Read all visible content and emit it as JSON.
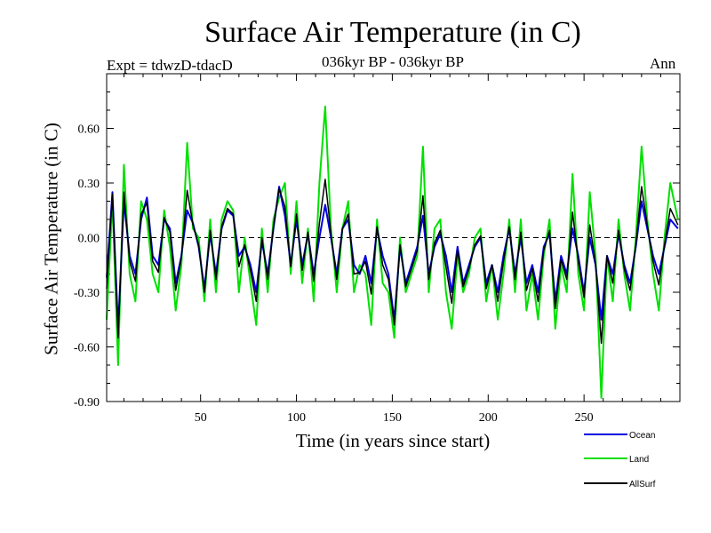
{
  "chart_data": {
    "type": "line",
    "title": "Surface Air Temperature (in C)",
    "subtitle_left": "Expt = tdwzD-tdacD",
    "subtitle_center": "036kyr BP - 036kyr BP",
    "subtitle_right": "Ann",
    "xlabel": "Time (in years since start)",
    "ylabel": "Surface Air Temperature (in C)",
    "xlim": [
      1,
      300
    ],
    "ylim": [
      -0.9,
      0.9
    ],
    "xticks": [
      50,
      100,
      150,
      200,
      250
    ],
    "xtick_labels": [
      "50",
      "100",
      "150",
      "200",
      "250"
    ],
    "yticks": [
      -0.9,
      -0.6,
      -0.3,
      0.0,
      0.3,
      0.6
    ],
    "ytick_labels": [
      "-0.90",
      "-0.60",
      "-0.30",
      "0.00",
      "0.30",
      "0.60"
    ],
    "zero_line": "dashed",
    "legend_placement": "bottom-right, outside plot",
    "series": [
      {
        "name": "Ocean",
        "color": "#0000e0",
        "x": [
          1,
          4,
          7,
          10,
          13,
          16,
          19,
          22,
          25,
          28,
          31,
          34,
          37,
          40,
          43,
          46,
          49,
          52,
          55,
          58,
          61,
          64,
          67,
          70,
          73,
          76,
          79,
          82,
          85,
          88,
          91,
          94,
          97,
          100,
          103,
          106,
          109,
          112,
          115,
          118,
          121,
          124,
          127,
          130,
          133,
          136,
          139,
          142,
          145,
          148,
          151,
          154,
          157,
          160,
          163,
          166,
          169,
          172,
          175,
          178,
          181,
          184,
          187,
          190,
          193,
          196,
          199,
          202,
          205,
          208,
          211,
          214,
          217,
          220,
          223,
          226,
          229,
          232,
          235,
          238,
          241,
          244,
          247,
          250,
          253,
          256,
          259,
          262,
          265,
          268,
          271,
          274,
          277,
          280,
          283,
          286,
          289,
          292,
          295,
          299
        ],
        "values": [
          -0.22,
          0.25,
          -0.5,
          0.2,
          -0.1,
          -0.2,
          0.1,
          0.22,
          -0.1,
          -0.15,
          0.1,
          0.05,
          -0.25,
          -0.1,
          0.15,
          0.08,
          -0.05,
          -0.28,
          0.02,
          -0.2,
          0.05,
          0.15,
          0.12,
          -0.1,
          -0.05,
          -0.15,
          -0.3,
          -0.02,
          -0.2,
          0.05,
          0.28,
          0.12,
          -0.15,
          0.1,
          -0.15,
          0.02,
          -0.2,
          0.0,
          0.18,
          0.0,
          -0.2,
          0.05,
          0.1,
          -0.15,
          -0.2,
          -0.1,
          -0.25,
          0.05,
          -0.1,
          -0.2,
          -0.45,
          -0.05,
          -0.25,
          -0.15,
          -0.05,
          0.12,
          -0.2,
          -0.05,
          0.02,
          -0.1,
          -0.3,
          -0.05,
          -0.25,
          -0.15,
          -0.05,
          0.0,
          -0.25,
          -0.15,
          -0.3,
          -0.1,
          0.05,
          -0.2,
          0.0,
          -0.25,
          -0.15,
          -0.3,
          -0.05,
          0.02,
          -0.35,
          -0.1,
          -0.2,
          0.05,
          -0.1,
          -0.3,
          0.0,
          -0.15,
          -0.45,
          -0.1,
          -0.2,
          0.02,
          -0.15,
          -0.25,
          -0.05,
          0.2,
          0.05,
          -0.1,
          -0.2,
          -0.05,
          0.1,
          0.05
        ]
      },
      {
        "name": "Land",
        "color": "#00e000",
        "x": [
          1,
          4,
          7,
          10,
          13,
          16,
          19,
          22,
          25,
          28,
          31,
          34,
          37,
          40,
          43,
          46,
          49,
          52,
          55,
          58,
          61,
          64,
          67,
          70,
          73,
          76,
          79,
          82,
          85,
          88,
          91,
          94,
          97,
          100,
          103,
          106,
          109,
          112,
          115,
          118,
          121,
          124,
          127,
          130,
          133,
          136,
          139,
          142,
          145,
          148,
          151,
          154,
          157,
          160,
          163,
          166,
          169,
          172,
          175,
          178,
          181,
          184,
          187,
          190,
          193,
          196,
          199,
          202,
          205,
          208,
          211,
          214,
          217,
          220,
          223,
          226,
          229,
          232,
          235,
          238,
          241,
          244,
          247,
          250,
          253,
          256,
          259,
          262,
          265,
          268,
          271,
          274,
          277,
          280,
          283,
          286,
          289,
          292,
          295,
          299
        ],
        "values": [
          -0.45,
          0.2,
          -0.7,
          0.4,
          -0.2,
          -0.35,
          0.2,
          0.1,
          -0.2,
          -0.3,
          0.15,
          -0.05,
          -0.4,
          -0.15,
          0.52,
          0.05,
          0.0,
          -0.35,
          0.1,
          -0.3,
          0.1,
          0.2,
          0.15,
          -0.3,
          0.0,
          -0.25,
          -0.48,
          0.05,
          -0.3,
          0.1,
          0.22,
          0.3,
          -0.2,
          0.2,
          -0.25,
          0.05,
          -0.35,
          0.3,
          0.72,
          0.05,
          -0.3,
          0.05,
          0.2,
          -0.3,
          -0.15,
          -0.2,
          -0.48,
          0.1,
          -0.25,
          -0.3,
          -0.55,
          0.0,
          -0.3,
          -0.2,
          -0.1,
          0.5,
          -0.3,
          0.05,
          0.1,
          -0.3,
          -0.5,
          -0.1,
          -0.3,
          -0.2,
          0.0,
          0.05,
          -0.35,
          -0.15,
          -0.45,
          -0.2,
          0.1,
          -0.3,
          0.1,
          -0.4,
          -0.2,
          -0.45,
          -0.1,
          0.1,
          -0.5,
          -0.15,
          -0.3,
          0.35,
          -0.2,
          -0.4,
          0.25,
          -0.1,
          -0.88,
          -0.1,
          -0.35,
          0.1,
          -0.2,
          -0.4,
          0.0,
          0.5,
          0.1,
          -0.2,
          -0.4,
          0.0,
          0.3,
          0.1
        ]
      },
      {
        "name": "AllSurf",
        "color": "#000000",
        "x": [
          1,
          4,
          7,
          10,
          13,
          16,
          19,
          22,
          25,
          28,
          31,
          34,
          37,
          40,
          43,
          46,
          49,
          52,
          55,
          58,
          61,
          64,
          67,
          70,
          73,
          76,
          79,
          82,
          85,
          88,
          91,
          94,
          97,
          100,
          103,
          106,
          109,
          112,
          115,
          118,
          121,
          124,
          127,
          130,
          133,
          136,
          139,
          142,
          145,
          148,
          151,
          154,
          157,
          160,
          163,
          166,
          169,
          172,
          175,
          178,
          181,
          184,
          187,
          190,
          193,
          196,
          199,
          202,
          205,
          208,
          211,
          214,
          217,
          220,
          223,
          226,
          229,
          232,
          235,
          238,
          241,
          244,
          247,
          250,
          253,
          256,
          259,
          262,
          265,
          268,
          271,
          274,
          277,
          280,
          283,
          286,
          289,
          292,
          295,
          299
        ],
        "values": [
          -0.28,
          0.24,
          -0.55,
          0.25,
          -0.13,
          -0.24,
          0.13,
          0.19,
          -0.13,
          -0.19,
          0.11,
          0.03,
          -0.29,
          -0.11,
          0.26,
          0.07,
          -0.04,
          -0.3,
          0.04,
          -0.23,
          0.06,
          0.16,
          0.13,
          -0.16,
          -0.04,
          -0.18,
          -0.35,
          0.0,
          -0.23,
          0.06,
          0.27,
          0.17,
          -0.16,
          0.13,
          -0.18,
          0.03,
          -0.24,
          0.08,
          0.32,
          0.02,
          -0.23,
          0.05,
          0.13,
          -0.2,
          -0.19,
          -0.13,
          -0.31,
          0.06,
          -0.15,
          -0.23,
          -0.48,
          -0.04,
          -0.27,
          -0.17,
          -0.07,
          0.23,
          -0.23,
          -0.03,
          0.04,
          -0.16,
          -0.36,
          -0.07,
          -0.27,
          -0.17,
          -0.04,
          0.01,
          -0.28,
          -0.15,
          -0.35,
          -0.13,
          0.06,
          -0.23,
          0.03,
          -0.29,
          -0.17,
          -0.35,
          -0.07,
          0.04,
          -0.39,
          -0.12,
          -0.23,
          0.14,
          -0.13,
          -0.33,
          0.07,
          -0.14,
          -0.58,
          -0.1,
          -0.25,
          0.04,
          -0.17,
          -0.29,
          -0.04,
          0.28,
          0.07,
          -0.13,
          -0.26,
          -0.04,
          0.16,
          0.07
        ]
      }
    ]
  }
}
